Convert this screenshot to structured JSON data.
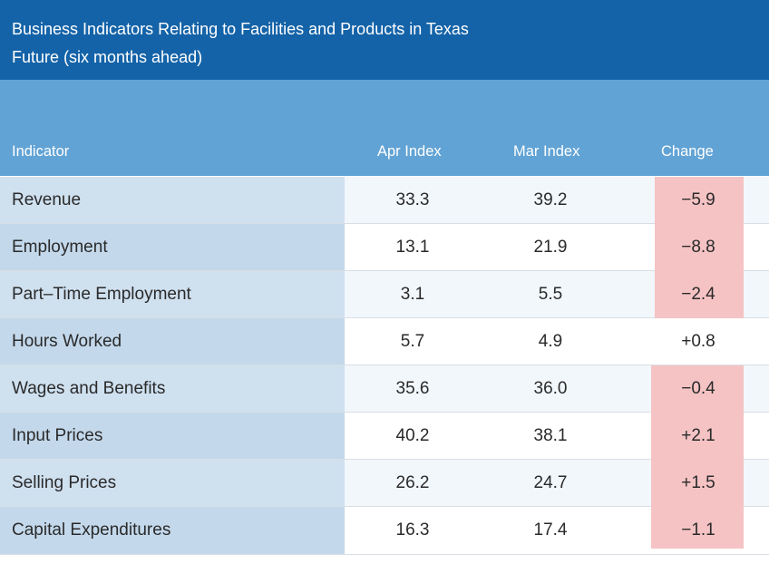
{
  "title": {
    "line1": "Business Indicators Relating to Facilities and Products in Texas",
    "line2": "Future (six months ahead)"
  },
  "columns": [
    "Indicator",
    "Apr Index",
    "Mar Index",
    "Change"
  ],
  "rows": [
    {
      "indicator": "Revenue",
      "apr": "33.3",
      "mar": "39.2",
      "change": "−5.9"
    },
    {
      "indicator": "Employment",
      "apr": "13.1",
      "mar": "21.9",
      "change": "−8.8"
    },
    {
      "indicator": "Part–Time Employment",
      "apr": "3.1",
      "mar": "5.5",
      "change": "−2.4"
    },
    {
      "indicator": "Hours Worked",
      "apr": "5.7",
      "mar": "4.9",
      "change": "+0.8"
    },
    {
      "indicator": "Wages and Benefits",
      "apr": "35.6",
      "mar": "36.0",
      "change": "−0.4"
    },
    {
      "indicator": "Input Prices",
      "apr": "40.2",
      "mar": "38.1",
      "change": "+2.1"
    },
    {
      "indicator": "Selling Prices",
      "apr": "26.2",
      "mar": "24.7",
      "change": "+1.5"
    },
    {
      "indicator": "Capital Expenditures",
      "apr": "16.3",
      "mar": "17.4",
      "change": "−1.1"
    }
  ],
  "colors": {
    "title_bg": "#1463a8",
    "header_bg": "#62a3d5",
    "indicator_bg": "#cfe0ef",
    "highlight": "#f5c3c4"
  }
}
